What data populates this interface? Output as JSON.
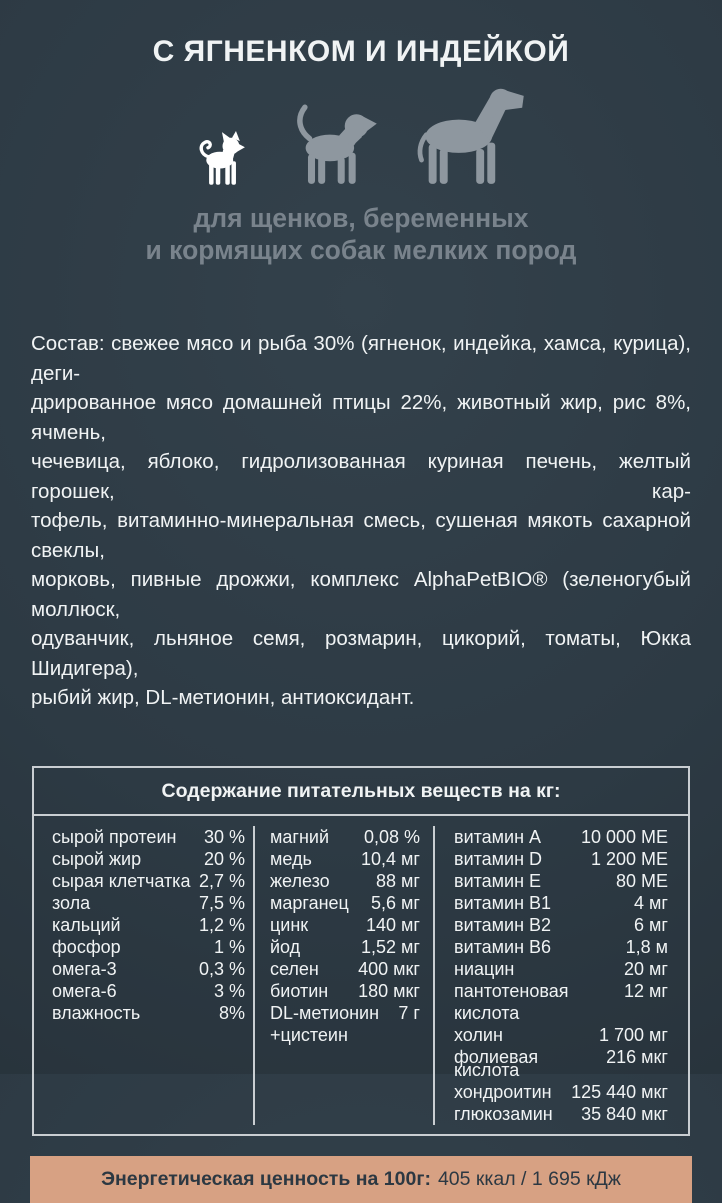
{
  "hero": {
    "title": "С ЯГНЕНКОМ И ИНДЕЙКОЙ",
    "dog_icons": [
      "small-dog-icon",
      "medium-dog-icon",
      "large-dog-icon"
    ],
    "subtitle_lines": [
      "для щенков, беременных",
      "и кормящих собак мелких пород"
    ]
  },
  "composition": {
    "lines": [
      "Состав: свежее мясо и рыба 30% (ягненок, индейка, хамса, курица), деги-",
      "дрированное мясо домашней птицы 22%, животный жир, рис 8%, ячмень,",
      "чечевица, яблоко, гидролизованная куриная печень, желтый горошек, кар-",
      "тофель, витаминно-минеральная смесь, сушеная мякоть сахарной свеклы,",
      "морковь, пивные дрожжи, комплекс AlphaPetBIO® (зеленогубый моллюск,",
      "одуванчик, льняное семя, розмарин, цикорий, томаты, Юкка Шидигера),",
      "рыбий жир, DL-метионин, антиоксидант."
    ]
  },
  "nutrition_table": {
    "title": "Содержание питательных веществ на кг:",
    "columns": [
      {
        "rows": [
          {
            "label": "сырой протеин",
            "value": "30 %"
          },
          {
            "label": "сырой жир",
            "value": "20 %"
          },
          {
            "label": "сырая клетчатка",
            "value": "2,7 %"
          },
          {
            "label": "зола",
            "value": "7,5 %"
          },
          {
            "label": "кальций",
            "value": "1,2 %"
          },
          {
            "label": "фосфор",
            "value": "1 %"
          },
          {
            "label": "омега-3",
            "value": "0,3 %"
          },
          {
            "label": "омега-6",
            "value": "3 %"
          },
          {
            "label": "влажность",
            "value": "8%"
          }
        ]
      },
      {
        "rows": [
          {
            "label": "магний",
            "value": "0,08 %"
          },
          {
            "label": "медь",
            "value": "10,4 мг"
          },
          {
            "label": "железо",
            "value": "88 мг"
          },
          {
            "label": "марганец",
            "value": "5,6 мг"
          },
          {
            "label": "цинк",
            "value": "140 мг"
          },
          {
            "label": "йод",
            "value": "1,52 мг"
          },
          {
            "label": "селен",
            "value": "400 мкг"
          },
          {
            "label": "биотин",
            "value": "180 мкг"
          },
          {
            "label": "DL-метионин",
            "label2": "+цистеин",
            "value": "7 г"
          }
        ]
      },
      {
        "rows": [
          {
            "label": "витамин А",
            "value": "10 000 МЕ"
          },
          {
            "label": "витамин D",
            "value": "1 200 МЕ"
          },
          {
            "label": "витамин Е",
            "value": "80 МЕ"
          },
          {
            "label": "витамин В1",
            "value": "4 мг"
          },
          {
            "label": "витамин В2",
            "value": "6 мг"
          },
          {
            "label": "витамин В6",
            "value": "1,8 м"
          },
          {
            "label": "ниацин",
            "value": "20 мг"
          },
          {
            "label": "пантотеновая",
            "label2": "кислота",
            "value": "12 мг"
          },
          {
            "label": "холин",
            "value": "1 700 мг"
          },
          {
            "label": "фолиевая",
            "label2": "кислота",
            "value": "216 мкг",
            "tight": true
          },
          {
            "label": "хондроитин",
            "value": "125 440 мкг"
          },
          {
            "label": "глюкозамин",
            "value": "35 840 мкг"
          }
        ]
      }
    ]
  },
  "energy": {
    "label": "Энергетическая ценность на 100г:",
    "value": "405 ккал / 1 695 кДж"
  },
  "colors": {
    "background": "#2d3a44",
    "text_light": "#f0f3f4",
    "muted_gray": "#79838c",
    "dog_gray": "#8e979f",
    "table_border": "#c9ced2",
    "energy_bar_background": "#d7a183",
    "energy_bar_text": "#2c3842"
  }
}
